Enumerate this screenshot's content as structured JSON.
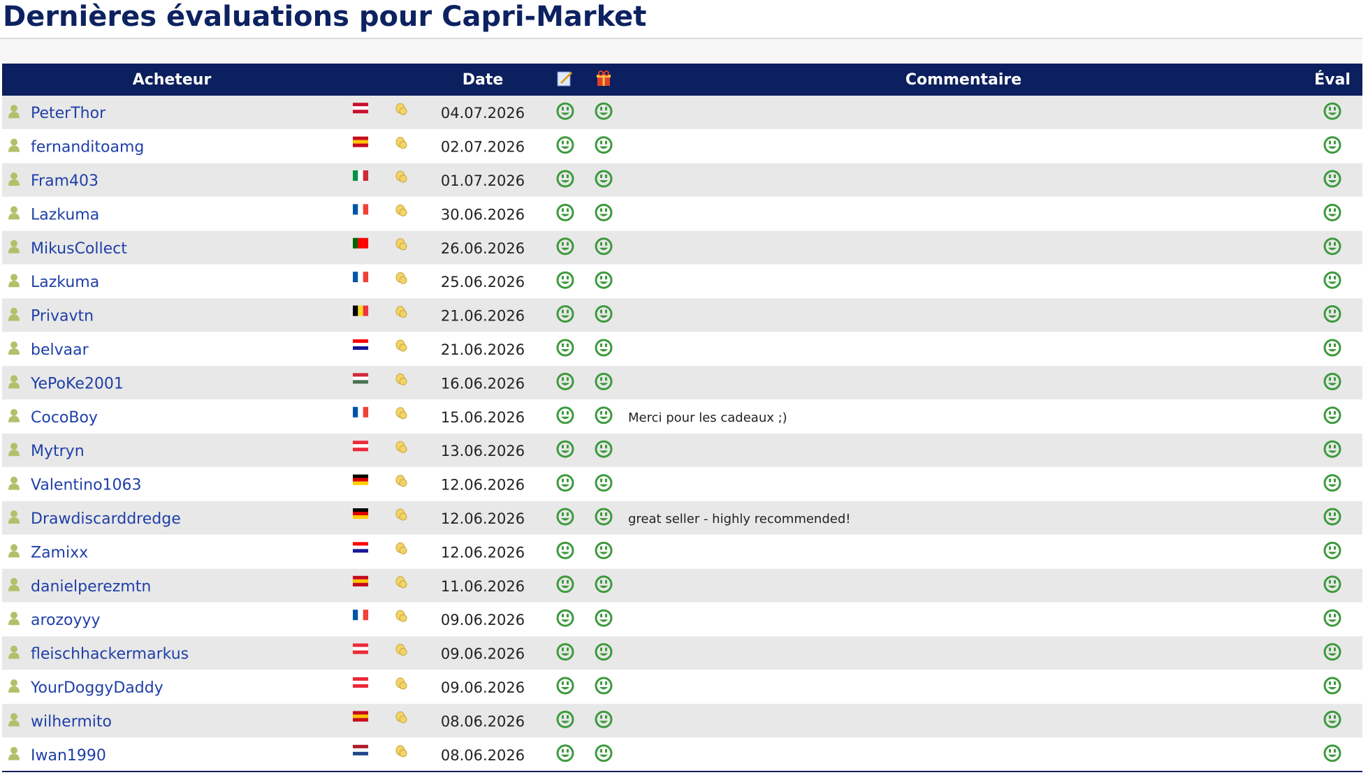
{
  "header": {
    "title": "Dernières évaluations pour Capri-Market"
  },
  "table": {
    "columns": {
      "buyer": "Acheteur",
      "date": "Date",
      "comment": "Commentaire",
      "rating": "Éval"
    },
    "header_color": "#0c1f5e",
    "row_colors": [
      "#e8e8e8",
      "#ffffff"
    ],
    "rows": [
      {
        "buyer": "PeterThor",
        "date": "04.07.2026",
        "flag_colors": [
          "#c8102e",
          "#ffffff",
          "#c8102e"
        ]
      },
      {
        "buyer": "fernanditoamg",
        "date": "02.07.2026",
        "flag_colors": [
          "#c60b1e",
          "#ffc400",
          "#c60b1e"
        ]
      },
      {
        "buyer": "Fram403",
        "date": "01.07.2026",
        "flag_colors": [
          "#009246",
          "#ffffff",
          "#ce2b37"
        ],
        "flag_vertical": true
      },
      {
        "buyer": "Lazkuma",
        "date": "30.06.2026",
        "flag_colors": [
          "#0055a4",
          "#ffffff",
          "#ef4135"
        ],
        "flag_vertical": true
      },
      {
        "buyer": "MikusCollect",
        "date": "26.06.2026",
        "flag_colors": [
          "#006600",
          "#ff0000",
          "#ff0000"
        ],
        "flag_vertical": true
      },
      {
        "buyer": "Lazkuma",
        "date": "25.06.2026",
        "flag_colors": [
          "#0055a4",
          "#ffffff",
          "#ef4135"
        ],
        "flag_vertical": true
      },
      {
        "buyer": "Privavtn",
        "date": "21.06.2026",
        "flag_colors": [
          "#000000",
          "#fdda24",
          "#ef3340"
        ],
        "flag_vertical": true
      },
      {
        "buyer": "belvaar",
        "date": "21.06.2026",
        "flag_colors": [
          "#ff0000",
          "#ffffff",
          "#171796"
        ]
      },
      {
        "buyer": "YePoKe2001",
        "date": "16.06.2026",
        "flag_colors": [
          "#ce2939",
          "#ffffff",
          "#477050"
        ]
      },
      {
        "buyer": "CocoBoy",
        "date": "15.06.2026",
        "comment": "Merci pour les cadeaux ;)",
        "flag_colors": [
          "#0055a4",
          "#ffffff",
          "#ef4135"
        ],
        "flag_vertical": true
      },
      {
        "buyer": "Mytryn",
        "date": "13.06.2026",
        "flag_colors": [
          "#ed2939",
          "#ffffff",
          "#ed2939"
        ]
      },
      {
        "buyer": "Valentino1063",
        "date": "12.06.2026",
        "flag_colors": [
          "#000000",
          "#dd0000",
          "#ffce00"
        ]
      },
      {
        "buyer": "Drawdiscarddredge",
        "date": "12.06.2026",
        "comment": "great seller - highly recommended!",
        "flag_colors": [
          "#000000",
          "#dd0000",
          "#ffce00"
        ]
      },
      {
        "buyer": "Zamixx",
        "date": "12.06.2026",
        "flag_colors": [
          "#ff0000",
          "#ffffff",
          "#171796"
        ]
      },
      {
        "buyer": "danielperezmtn",
        "date": "11.06.2026",
        "flag_colors": [
          "#c60b1e",
          "#ffc400",
          "#c60b1e"
        ]
      },
      {
        "buyer": "arozoyyy",
        "date": "09.06.2026",
        "flag_colors": [
          "#0055a4",
          "#ffffff",
          "#ef4135"
        ],
        "flag_vertical": true
      },
      {
        "buyer": "fleischhackermarkus",
        "date": "09.06.2026",
        "flag_colors": [
          "#ed2939",
          "#ffffff",
          "#ed2939"
        ]
      },
      {
        "buyer": "YourDoggyDaddy",
        "date": "09.06.2026",
        "flag_colors": [
          "#ed2939",
          "#ffffff",
          "#ed2939"
        ]
      },
      {
        "buyer": "wilhermito",
        "date": "08.06.2026",
        "flag_colors": [
          "#c60b1e",
          "#ffc400",
          "#c60b1e"
        ]
      },
      {
        "buyer": "Iwan1990",
        "date": "08.06.2026",
        "flag_colors": [
          "#ae1c28",
          "#ffffff",
          "#21468b"
        ]
      }
    ]
  }
}
